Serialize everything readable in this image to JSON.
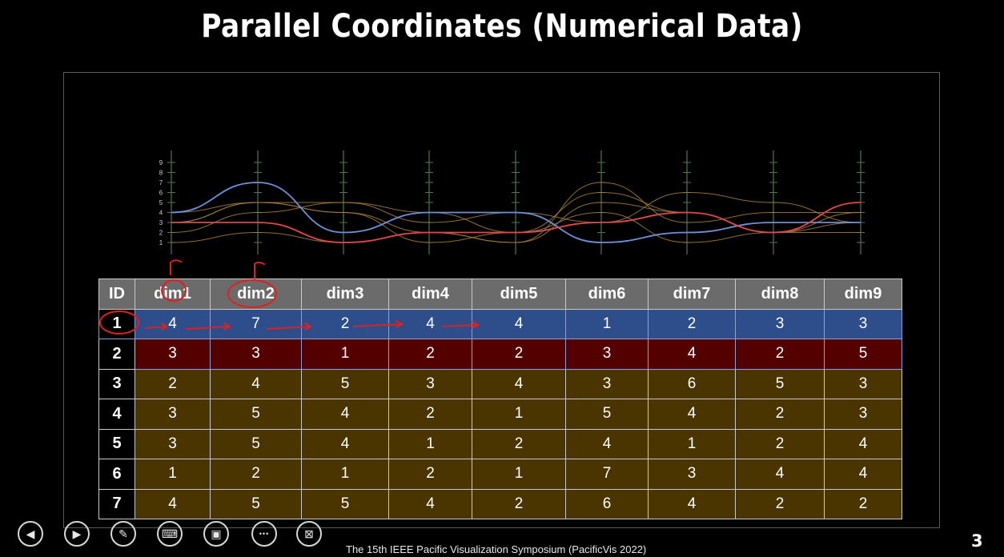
{
  "title": "Parallel Coordinates (Numerical Data)",
  "chart_data": {
    "type": "line",
    "dimensions": [
      "dim1",
      "dim2",
      "dim3",
      "dim4",
      "dim5",
      "dim6",
      "dim7",
      "dim8",
      "dim9"
    ],
    "axis_ticks": [
      "1",
      "2",
      "3",
      "4",
      "5",
      "6",
      "7",
      "8",
      "9"
    ],
    "ylim": [
      0,
      10
    ],
    "series": [
      {
        "id": "1",
        "values": [
          4,
          7,
          2,
          4,
          4,
          1,
          2,
          3,
          3
        ],
        "color": "#6f8fd6"
      },
      {
        "id": "2",
        "values": [
          3,
          3,
          1,
          2,
          2,
          3,
          4,
          2,
          5
        ],
        "color": "#e0484e"
      },
      {
        "id": "3",
        "values": [
          2,
          4,
          5,
          3,
          4,
          3,
          6,
          5,
          3
        ],
        "color": "#a6803c"
      },
      {
        "id": "4",
        "values": [
          3,
          5,
          4,
          2,
          1,
          5,
          4,
          2,
          3
        ],
        "color": "#a6803c"
      },
      {
        "id": "5",
        "values": [
          3,
          5,
          4,
          1,
          2,
          4,
          1,
          2,
          4
        ],
        "color": "#a6803c"
      },
      {
        "id": "6",
        "values": [
          1,
          2,
          1,
          2,
          1,
          7,
          3,
          4,
          4
        ],
        "color": "#a6803c"
      },
      {
        "id": "7",
        "values": [
          4,
          5,
          5,
          4,
          2,
          6,
          4,
          2,
          2
        ],
        "color": "#a6803c"
      }
    ]
  },
  "table": {
    "headers": [
      "ID",
      "dim1",
      "dim2",
      "dim3",
      "dim4",
      "dim5",
      "dim6",
      "dim7",
      "dim8",
      "dim9"
    ],
    "rows": [
      [
        "1",
        "4",
        "7",
        "2",
        "4",
        "4",
        "1",
        "2",
        "3",
        "3"
      ],
      [
        "2",
        "3",
        "3",
        "1",
        "2",
        "2",
        "3",
        "4",
        "2",
        "5"
      ],
      [
        "3",
        "2",
        "4",
        "5",
        "3",
        "4",
        "3",
        "6",
        "5",
        "3"
      ],
      [
        "4",
        "3",
        "5",
        "4",
        "2",
        "1",
        "5",
        "4",
        "2",
        "3"
      ],
      [
        "5",
        "3",
        "5",
        "4",
        "1",
        "2",
        "4",
        "1",
        "2",
        "4"
      ],
      [
        "6",
        "1",
        "2",
        "1",
        "2",
        "1",
        "7",
        "3",
        "4",
        "4"
      ],
      [
        "7",
        "4",
        "5",
        "5",
        "4",
        "2",
        "6",
        "4",
        "2",
        "2"
      ]
    ]
  },
  "controls": [
    {
      "name": "previous-slide-button",
      "icon": "arrow-left-icon",
      "glyph": "◀"
    },
    {
      "name": "next-slide-button",
      "icon": "arrow-right-icon",
      "glyph": "▶"
    },
    {
      "name": "pen-tool-button",
      "icon": "pen-icon",
      "glyph": "✎"
    },
    {
      "name": "subtitles-button",
      "icon": "keyboard-icon",
      "glyph": "⌨"
    },
    {
      "name": "see-all-slides-button",
      "icon": "slides-icon",
      "glyph": "▣"
    },
    {
      "name": "more-options-button",
      "icon": "ellipsis-icon",
      "glyph": "•••"
    },
    {
      "name": "end-show-button",
      "icon": "screen-close-icon",
      "glyph": "⊠"
    }
  ],
  "footer": "The 15th IEEE Pacific Visualization Symposium (PacificVis 2022)",
  "page_number": "3",
  "colors": {
    "highlight_row": "#2d4e8a",
    "second_row": "#550000",
    "other_rows": "#4a3400",
    "header": "#6b6b6b",
    "annotation": "#e0201e"
  }
}
